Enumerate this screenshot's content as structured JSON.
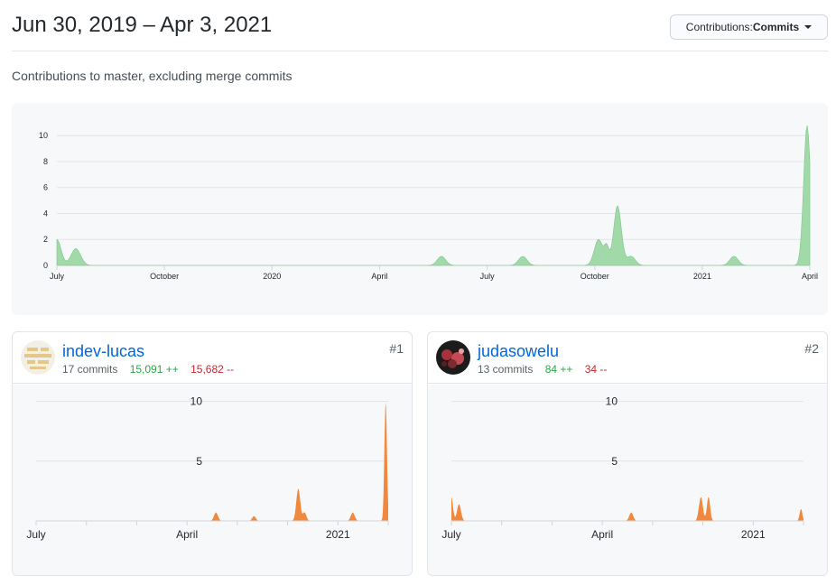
{
  "header": {
    "title": "Jun 30, 2019 – Apr 3, 2021",
    "dropdown_prefix": "Contributions: ",
    "dropdown_value": "Commits",
    "subtitle": "Contributions to master, excluding merge commits"
  },
  "colors": {
    "main_area": "#a2d9a8",
    "main_stroke": "#7cc68a",
    "contrib_area": "#f0883e"
  },
  "chart_data": [
    {
      "type": "area",
      "name": "main-contributions",
      "x_labels": [
        "July",
        "October",
        "2020",
        "April",
        "July",
        "October",
        "2021",
        "April"
      ],
      "y_ticks": [
        0,
        2,
        4,
        6,
        8,
        10
      ],
      "ylim": [
        0,
        10.5
      ],
      "x_range": [
        0,
        278
      ],
      "peaks": [
        {
          "day": 0,
          "value": 2.0,
          "width": 2.2
        },
        {
          "day": 7,
          "value": 1.3,
          "width": 2.5
        },
        {
          "day": 142,
          "value": 0.7,
          "width": 2.2
        },
        {
          "day": 172,
          "value": 0.7,
          "width": 2.2
        },
        {
          "day": 200,
          "value": 2.0,
          "width": 2.2
        },
        {
          "day": 203,
          "value": 1.3,
          "width": 1.2
        },
        {
          "day": 207,
          "value": 4.6,
          "width": 2.0
        },
        {
          "day": 212,
          "value": 0.7,
          "width": 2.2
        },
        {
          "day": 250,
          "value": 0.7,
          "width": 2.2
        },
        {
          "day": 277,
          "value": 10.8,
          "width": 1.8
        }
      ]
    },
    {
      "type": "area",
      "name": "indev-lucas",
      "x_labels": [
        "July",
        "April",
        "2021"
      ],
      "y_ticks": [
        5,
        10
      ],
      "ylim": [
        0,
        10.5
      ],
      "x_range": [
        0,
        278
      ],
      "peaks": [
        {
          "day": 142,
          "value": 0.7,
          "width": 2.2
        },
        {
          "day": 172,
          "value": 0.4,
          "width": 2.0
        },
        {
          "day": 207,
          "value": 2.7,
          "width": 2.2
        },
        {
          "day": 212,
          "value": 0.7,
          "width": 2.0
        },
        {
          "day": 250,
          "value": 0.7,
          "width": 2.2
        },
        {
          "day": 276,
          "value": 10.0,
          "width": 1.4
        }
      ]
    },
    {
      "type": "area",
      "name": "judasowelu",
      "x_labels": [
        "July",
        "April",
        "2021"
      ],
      "y_ticks": [
        5,
        10
      ],
      "ylim": [
        0,
        10.5
      ],
      "x_range": [
        0,
        278
      ],
      "peaks": [
        {
          "day": 0,
          "value": 2.0,
          "width": 1.8
        },
        {
          "day": 6,
          "value": 1.4,
          "width": 2.2
        },
        {
          "day": 142,
          "value": 0.7,
          "width": 2.2
        },
        {
          "day": 197,
          "value": 2.0,
          "width": 2.2
        },
        {
          "day": 203,
          "value": 2.0,
          "width": 1.8
        },
        {
          "day": 276,
          "value": 1.0,
          "width": 1.5
        }
      ]
    }
  ],
  "contributors": [
    {
      "username": "indev-lucas",
      "commits": "17 commits",
      "additions": "15,091 ++",
      "deletions": "15,682 --",
      "rank": "#1"
    },
    {
      "username": "judasowelu",
      "commits": "13 commits",
      "additions": "84 ++",
      "deletions": "34 --",
      "rank": "#2"
    }
  ]
}
